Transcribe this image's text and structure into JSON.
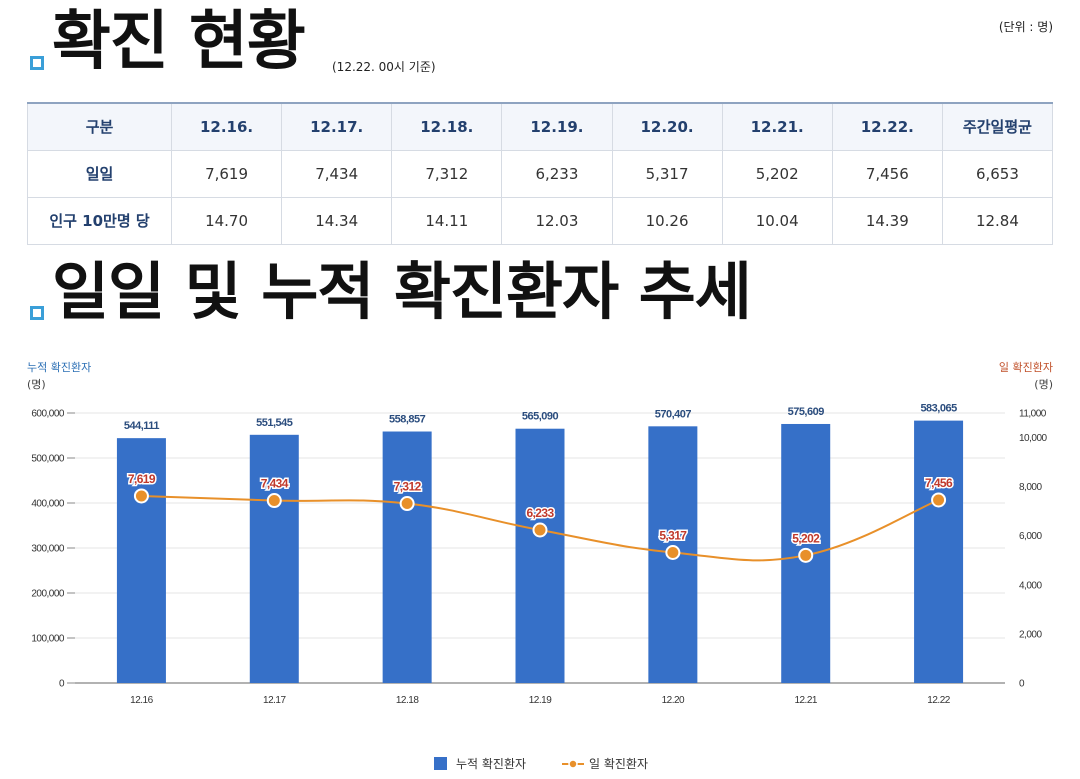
{
  "section1": {
    "title": "확진 현황",
    "note": "(12.22. 00시 기준)",
    "unit": "(단위 : 명)"
  },
  "table": {
    "headers": [
      "구분",
      "12.16.",
      "12.17.",
      "12.18.",
      "12.19.",
      "12.20.",
      "12.21.",
      "12.22.",
      "주간일평균"
    ],
    "rows": [
      {
        "label": "일일",
        "values": [
          "7,619",
          "7,434",
          "7,312",
          "6,233",
          "5,317",
          "5,202",
          "7,456",
          "6,653"
        ]
      },
      {
        "label": "인구 10만명 당",
        "values": [
          "14.70",
          "14.34",
          "14.11",
          "12.03",
          "10.26",
          "10.04",
          "14.39",
          "12.84"
        ]
      }
    ]
  },
  "section2": {
    "title": "일일 및 누적 확진환자 추세"
  },
  "chart_data": {
    "type": "bar",
    "categories": [
      "12.16",
      "12.17",
      "12.18",
      "12.19",
      "12.20",
      "12.21",
      "12.22"
    ],
    "series": [
      {
        "name": "누적 확진환자",
        "type": "bar",
        "axis": "left",
        "color": "#3670c8",
        "values": [
          544111,
          551545,
          558857,
          565090,
          570407,
          575609,
          583065
        ],
        "labels": [
          "544,111",
          "551,545",
          "558,857",
          "565,090",
          "570,407",
          "575,609",
          "583,065"
        ]
      },
      {
        "name": "일 확진환자",
        "type": "line",
        "axis": "right",
        "color": "#e8902a",
        "values": [
          7619,
          7434,
          7312,
          6233,
          5317,
          5202,
          7456
        ],
        "labels": [
          "7,619",
          "7,434",
          "7,312",
          "6,233",
          "5,317",
          "5,202",
          "7,456"
        ]
      }
    ],
    "y_left": {
      "title": "누적 확진환자",
      "unit": "(명)",
      "range": [
        0,
        600000
      ],
      "ticks": [
        0,
        100000,
        200000,
        300000,
        400000,
        500000,
        600000
      ],
      "tick_labels": [
        "0",
        "100,000",
        "200,000",
        "300,000",
        "400,000",
        "500,000",
        "600,000"
      ]
    },
    "y_right": {
      "title": "일 확진환자",
      "unit": "(명)",
      "range": [
        0,
        11000
      ],
      "ticks": [
        0,
        2000,
        4000,
        6000,
        8000,
        10000,
        11000
      ],
      "tick_labels": [
        "0",
        "2,000",
        "4,000",
        "6,000",
        "8,000",
        "10,000",
        "11,000"
      ]
    },
    "grid": "horizontal",
    "legend": "bottom-center"
  }
}
